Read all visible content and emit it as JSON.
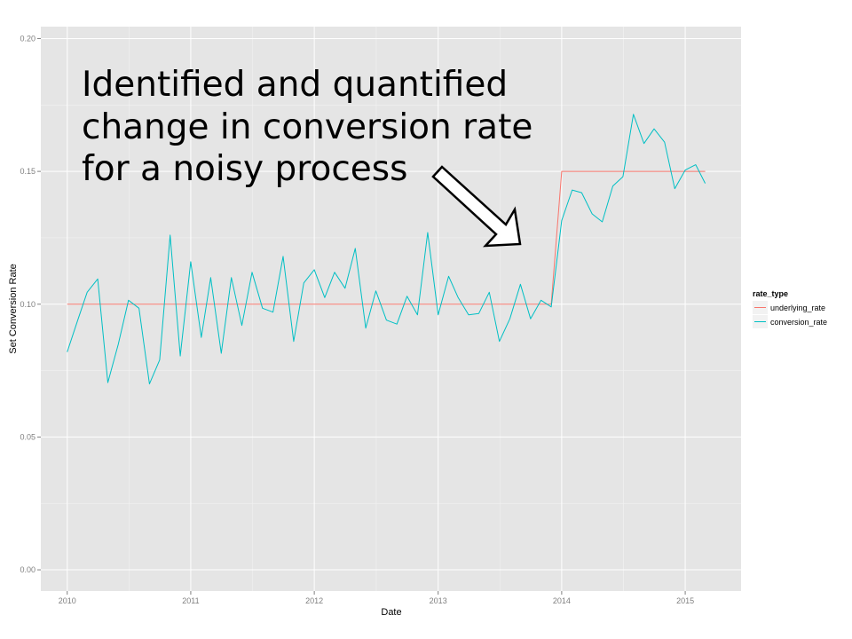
{
  "chart_data": {
    "type": "line",
    "xlabel": "Date",
    "ylabel": "Set Conversion Rate",
    "ylim": [
      -0.008,
      0.2045
    ],
    "xlim": [
      "2009-10-15",
      "2015-06-15"
    ],
    "x_ticks": [
      {
        "date": "2010-01-01",
        "label": "2010"
      },
      {
        "date": "2011-01-01",
        "label": "2011"
      },
      {
        "date": "2012-01-01",
        "label": "2012"
      },
      {
        "date": "2013-01-01",
        "label": "2013"
      },
      {
        "date": "2014-01-01",
        "label": "2014"
      },
      {
        "date": "2015-01-01",
        "label": "2015"
      }
    ],
    "y_ticks": [
      {
        "value": 0.0,
        "label": "0.00"
      },
      {
        "value": 0.05,
        "label": "0.05"
      },
      {
        "value": 0.1,
        "label": "0.10"
      },
      {
        "value": 0.15,
        "label": "0.15"
      },
      {
        "value": 0.2,
        "label": "0.20"
      }
    ],
    "grid": true,
    "legend": {
      "title": "rate_type",
      "position": "right"
    },
    "x": [
      "2010-01",
      "2010-02",
      "2010-03",
      "2010-04",
      "2010-05",
      "2010-06",
      "2010-07",
      "2010-08",
      "2010-09",
      "2010-10",
      "2010-11",
      "2010-12",
      "2011-01",
      "2011-02",
      "2011-03",
      "2011-04",
      "2011-05",
      "2011-06",
      "2011-07",
      "2011-08",
      "2011-09",
      "2011-10",
      "2011-11",
      "2011-12",
      "2012-01",
      "2012-02",
      "2012-03",
      "2012-04",
      "2012-05",
      "2012-06",
      "2012-07",
      "2012-08",
      "2012-09",
      "2012-10",
      "2012-11",
      "2012-12",
      "2013-01",
      "2013-02",
      "2013-03",
      "2013-04",
      "2013-05",
      "2013-06",
      "2013-07",
      "2013-08",
      "2013-09",
      "2013-10",
      "2013-11",
      "2013-12",
      "2014-01",
      "2014-02",
      "2014-03",
      "2014-04",
      "2014-05",
      "2014-06",
      "2014-07",
      "2014-08",
      "2014-09",
      "2014-10",
      "2014-11",
      "2014-12",
      "2015-01",
      "2015-02",
      "2015-03"
    ],
    "series": [
      {
        "name": "underlying_rate",
        "color": "#F8766D",
        "values": [
          0.1,
          0.1,
          0.1,
          0.1,
          0.1,
          0.1,
          0.1,
          0.1,
          0.1,
          0.1,
          0.1,
          0.1,
          0.1,
          0.1,
          0.1,
          0.1,
          0.1,
          0.1,
          0.1,
          0.1,
          0.1,
          0.1,
          0.1,
          0.1,
          0.1,
          0.1,
          0.1,
          0.1,
          0.1,
          0.1,
          0.1,
          0.1,
          0.1,
          0.1,
          0.1,
          0.1,
          0.1,
          0.1,
          0.1,
          0.1,
          0.1,
          0.1,
          0.1,
          0.1,
          0.1,
          0.1,
          0.1,
          0.1,
          0.15,
          0.15,
          0.15,
          0.15,
          0.15,
          0.15,
          0.15,
          0.15,
          0.15,
          0.15,
          0.15,
          0.15,
          0.15,
          0.15,
          0.15
        ]
      },
      {
        "name": "conversion_rate",
        "color": "#00BFC4",
        "values": [
          0.082,
          0.094,
          0.1045,
          0.1095,
          0.0705,
          0.085,
          0.1015,
          0.0985,
          0.07,
          0.079,
          0.126,
          0.0805,
          0.116,
          0.0875,
          0.11,
          0.0815,
          0.11,
          0.092,
          0.112,
          0.0985,
          0.097,
          0.118,
          0.086,
          0.108,
          0.113,
          0.1025,
          0.112,
          0.106,
          0.121,
          0.091,
          0.105,
          0.094,
          0.0925,
          0.103,
          0.096,
          0.127,
          0.096,
          0.1105,
          0.1025,
          0.096,
          0.0965,
          0.1045,
          0.086,
          0.0945,
          0.1075,
          0.0945,
          0.1015,
          0.099,
          0.1315,
          0.143,
          0.142,
          0.134,
          0.131,
          0.1445,
          0.148,
          0.1715,
          0.1605,
          0.166,
          0.161,
          0.1435,
          0.1505,
          0.1525,
          0.1455
        ]
      }
    ],
    "annotation": {
      "lines": [
        "Identified and quantified",
        "change in conversion rate",
        "for a noisy process"
      ]
    }
  },
  "colors": {
    "panel_background": "#E5E5E5",
    "grid_major": "#FFFFFF",
    "grid_minor": "#F2F2F2"
  }
}
